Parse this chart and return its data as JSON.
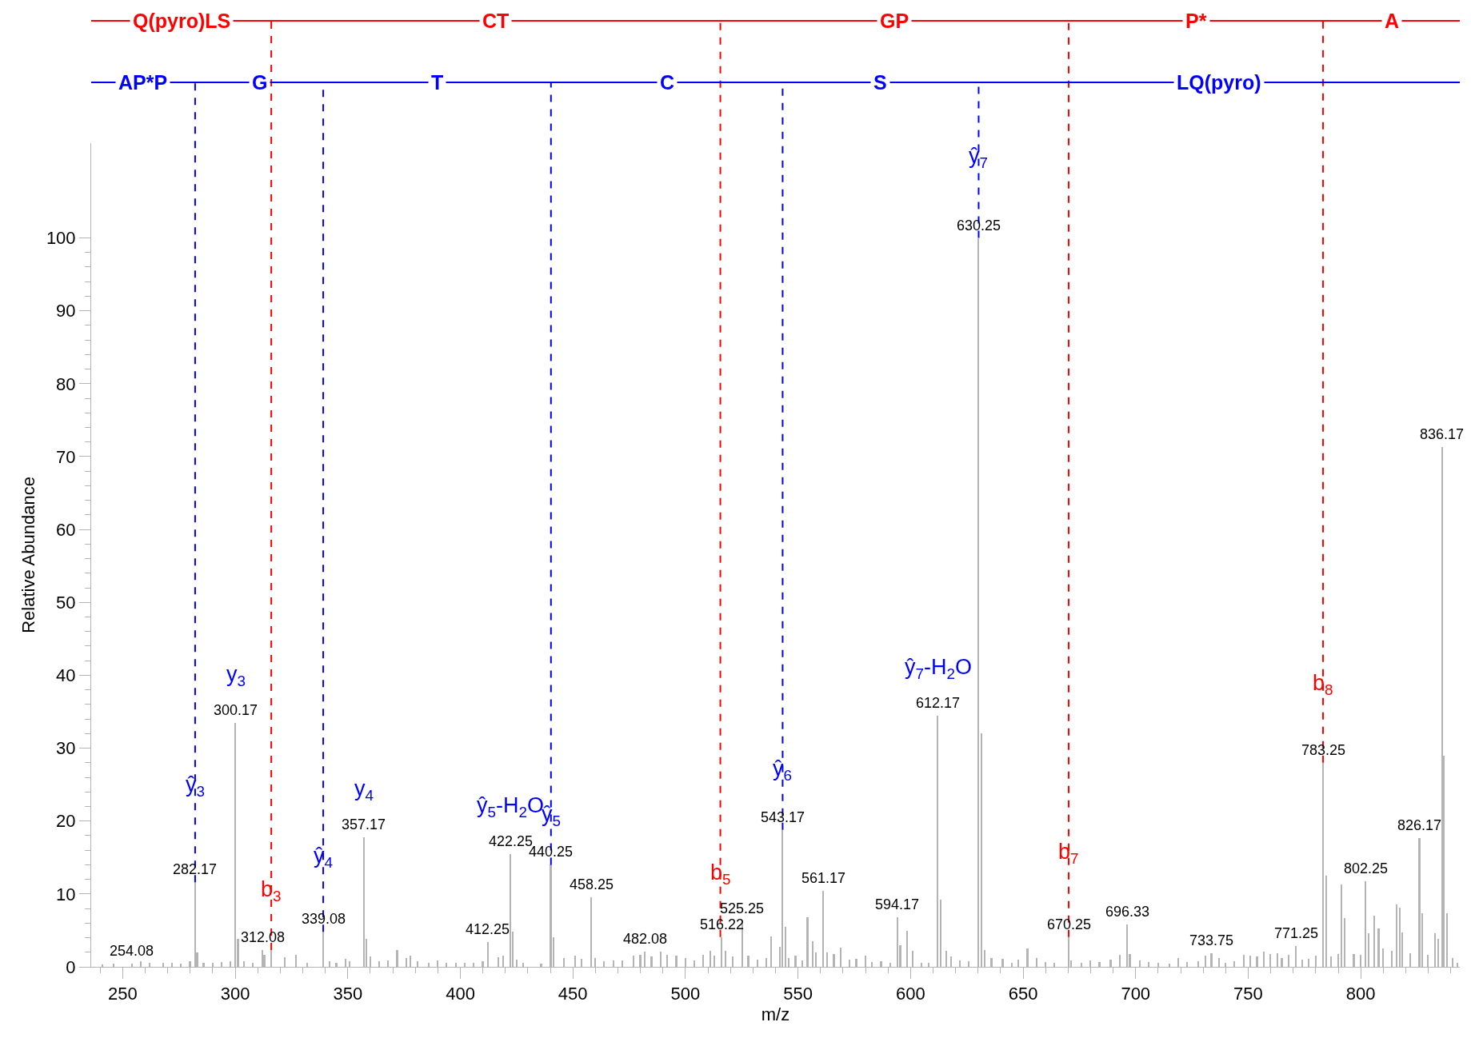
{
  "chart_data": {
    "type": "bar",
    "xlabel": "m/z",
    "ylabel": "Relative Abundance",
    "xlim": [
      236,
      844
    ],
    "ylim": [
      0,
      113
    ],
    "xticks": [
      {
        "value": 240,
        "label": null
      },
      250,
      {
        "value": 260,
        "label": null
      },
      {
        "value": 270,
        "label": null
      },
      {
        "value": 280,
        "label": null
      },
      {
        "value": 290,
        "label": null
      },
      300,
      {
        "value": 310,
        "label": null
      },
      {
        "value": 320,
        "label": null
      },
      {
        "value": 330,
        "label": null
      },
      {
        "value": 340,
        "label": null
      },
      350,
      {
        "value": 360,
        "label": null
      },
      {
        "value": 370,
        "label": null
      },
      {
        "value": 380,
        "label": null
      },
      {
        "value": 390,
        "label": null
      },
      400,
      {
        "value": 410,
        "label": null
      },
      {
        "value": 420,
        "label": null
      },
      {
        "value": 430,
        "label": null
      },
      {
        "value": 440,
        "label": null
      },
      450,
      {
        "value": 460,
        "label": null
      },
      {
        "value": 470,
        "label": null
      },
      {
        "value": 480,
        "label": null
      },
      {
        "value": 490,
        "label": null
      },
      500,
      {
        "value": 510,
        "label": null
      },
      {
        "value": 520,
        "label": null
      },
      {
        "value": 530,
        "label": null
      },
      {
        "value": 540,
        "label": null
      },
      550,
      {
        "value": 560,
        "label": null
      },
      {
        "value": 570,
        "label": null
      },
      {
        "value": 580,
        "label": null
      },
      {
        "value": 590,
        "label": null
      },
      600,
      {
        "value": 610,
        "label": null
      },
      {
        "value": 620,
        "label": null
      },
      {
        "value": 630,
        "label": null
      },
      {
        "value": 640,
        "label": null
      },
      650,
      {
        "value": 660,
        "label": null
      },
      {
        "value": 670,
        "label": null
      },
      {
        "value": 680,
        "label": null
      },
      {
        "value": 690,
        "label": null
      },
      700,
      {
        "value": 710,
        "label": null
      },
      {
        "value": 720,
        "label": null
      },
      {
        "value": 730,
        "label": null
      },
      {
        "value": 740,
        "label": null
      },
      750,
      {
        "value": 760,
        "label": null
      },
      {
        "value": 770,
        "label": null
      },
      {
        "value": 780,
        "label": null
      },
      {
        "value": 790,
        "label": null
      },
      800,
      {
        "value": 810,
        "label": null
      },
      {
        "value": 820,
        "label": null
      },
      {
        "value": 830,
        "label": null
      },
      {
        "value": 840,
        "label": null
      }
    ],
    "yticks": [
      0,
      {
        "value": 2,
        "label": null
      },
      {
        "value": 4,
        "label": null
      },
      {
        "value": 6,
        "label": null
      },
      {
        "value": 8,
        "label": null
      },
      10,
      {
        "value": 12,
        "label": null
      },
      {
        "value": 14,
        "label": null
      },
      {
        "value": 16,
        "label": null
      },
      {
        "value": 18,
        "label": null
      },
      20,
      {
        "value": 22,
        "label": null
      },
      {
        "value": 24,
        "label": null
      },
      {
        "value": 26,
        "label": null
      },
      {
        "value": 28,
        "label": null
      },
      30,
      {
        "value": 32,
        "label": null
      },
      {
        "value": 34,
        "label": null
      },
      {
        "value": 36,
        "label": null
      },
      {
        "value": 38,
        "label": null
      },
      40,
      {
        "value": 42,
        "label": null
      },
      {
        "value": 44,
        "label": null
      },
      {
        "value": 46,
        "label": null
      },
      {
        "value": 48,
        "label": null
      },
      50,
      {
        "value": 52,
        "label": null
      },
      {
        "value": 54,
        "label": null
      },
      {
        "value": 56,
        "label": null
      },
      {
        "value": 58,
        "label": null
      },
      60,
      {
        "value": 62,
        "label": null
      },
      {
        "value": 64,
        "label": null
      },
      {
        "value": 66,
        "label": null
      },
      {
        "value": 68,
        "label": null
      },
      70,
      {
        "value": 72,
        "label": null
      },
      {
        "value": 74,
        "label": null
      },
      {
        "value": 76,
        "label": null
      },
      {
        "value": 78,
        "label": null
      },
      80,
      {
        "value": 82,
        "label": null
      },
      {
        "value": 84,
        "label": null
      },
      {
        "value": 86,
        "label": null
      },
      {
        "value": 88,
        "label": null
      },
      90,
      {
        "value": 92,
        "label": null
      },
      {
        "value": 94,
        "label": null
      },
      {
        "value": 96,
        "label": null
      },
      {
        "value": 98,
        "label": null
      },
      100
    ],
    "series": [
      {
        "color": "#b4b4b4",
        "x": [
          241,
          246,
          254.08,
          258,
          262,
          268,
          272,
          276,
          280,
          282.17,
          283.2,
          286,
          290,
          294,
          298,
          300.17,
          301.3,
          304,
          308,
          312.08,
          313,
          316,
          322,
          327,
          332,
          339.08,
          342,
          345,
          349,
          351,
          357.17,
          358.2,
          360,
          364,
          368,
          372,
          376,
          378,
          381,
          386,
          390,
          394,
          398,
          402,
          406,
          410,
          412.25,
          417,
          419,
          422.25,
          423.3,
          425,
          428,
          436,
          440.25,
          441.5,
          446,
          451,
          454,
          458.25,
          460,
          464,
          468,
          472,
          477,
          480,
          482.08,
          485,
          489,
          492,
          496,
          500,
          504,
          508,
          511,
          513,
          516.22,
          518,
          521,
          525.25,
          528,
          532,
          536,
          538,
          542,
          543.17,
          544.5,
          546,
          549,
          552,
          554.3,
          556.5,
          558,
          561.17,
          563,
          566,
          569,
          573,
          576,
          580,
          583,
          587,
          591,
          594.17,
          595.5,
          598.5,
          601,
          605,
          608,
          612.17,
          613.5,
          616,
          618,
          622,
          626,
          630.25,
          631.5,
          633,
          636,
          641,
          645,
          648,
          652,
          656,
          660,
          664,
          670.25,
          671.5,
          676,
          680,
          684,
          689,
          693,
          696.33,
          697.5,
          702,
          706,
          710,
          715,
          719,
          723,
          728,
          731,
          733.75,
          737,
          740,
          744,
          748,
          751,
          754,
          757,
          760,
          763,
          765,
          768,
          771.25,
          774,
          777,
          780,
          783.25,
          784.6,
          787,
          790,
          791.5,
          793,
          797,
          800,
          802.25,
          803.5,
          806,
          808,
          810,
          814,
          816,
          817.5,
          818.5,
          822,
          826.17,
          827.5,
          830,
          833,
          834.5,
          836.17,
          837,
          838.5,
          841,
          843
        ],
        "values": [
          0.3,
          0.4,
          0.4,
          0.8,
          0.6,
          0.5,
          0.6,
          0.4,
          0.8,
          11.6,
          2,
          0.6,
          0.5,
          0.7,
          0.8,
          33.5,
          3.8,
          0.8,
          0.6,
          2.3,
          1.6,
          2.3,
          1.3,
          1.6,
          0.6,
          4.8,
          0.8,
          0.5,
          1.1,
          0.8,
          17.8,
          3.8,
          1.4,
          0.8,
          0.9,
          2.3,
          1.2,
          1.5,
          0.8,
          0.6,
          0.9,
          0.6,
          0.5,
          0.6,
          0.5,
          0.8,
          3.4,
          1.3,
          1.5,
          15.5,
          4.8,
          1,
          0.6,
          0.4,
          14,
          4.1,
          1.2,
          1.5,
          1.1,
          9.6,
          1.2,
          0.8,
          0.9,
          0.9,
          1.5,
          1.6,
          2.1,
          1.4,
          2.1,
          1.6,
          1.5,
          1.2,
          0.9,
          1.6,
          2.2,
          1.5,
          4.1,
          2.2,
          1.4,
          6.3,
          1.5,
          1,
          1.2,
          4.2,
          2.7,
          18.8,
          5.5,
          1.2,
          1.5,
          0.9,
          6.8,
          3.5,
          2,
          10.4,
          2,
          1.8,
          2.6,
          1,
          1.1,
          1.5,
          0.7,
          0.8,
          0.6,
          6.8,
          3,
          4.9,
          2.2,
          0.6,
          0.5,
          34.4,
          9.2,
          2.2,
          1.4,
          0.9,
          0.8,
          100,
          32,
          2.3,
          1.2,
          1.1,
          0.6,
          1,
          2.5,
          1.2,
          0.7,
          0.5,
          4.1,
          0.9,
          0.6,
          0.9,
          0.7,
          1,
          1.7,
          5.8,
          1.8,
          0.9,
          0.7,
          0.5,
          0.4,
          1.2,
          0.7,
          0.8,
          1.5,
          1.9,
          1.2,
          0.6,
          0.8,
          1.7,
          1.5,
          1.4,
          2.1,
          1.8,
          1.9,
          1.2,
          1.7,
          2.8,
          1,
          1.1,
          1.5,
          28,
          12.5,
          1.4,
          1.8,
          11.3,
          6.7,
          1.8,
          1.6,
          11.7,
          4.6,
          7,
          5.3,
          2.5,
          2.2,
          8.6,
          8.1,
          4.7,
          1.9,
          17.7,
          7.4,
          1.6,
          4.6,
          3.8,
          71.3,
          29,
          7.4,
          1.2,
          0.5
        ]
      }
    ],
    "annotations": [
      {
        "text": "254.08",
        "x": 254.08,
        "y": 0.4
      },
      {
        "text": "282.17",
        "x": 282.17,
        "y": 11.6
      },
      {
        "text": "300.17",
        "x": 300.17,
        "y": 33.5
      },
      {
        "text": "312.08",
        "x": 312.08,
        "y": 2.3
      },
      {
        "text": "339.08",
        "x": 339.08,
        "y": 4.8
      },
      {
        "text": "357.17",
        "x": 357.17,
        "y": 17.8
      },
      {
        "text": "412.25",
        "x": 412.25,
        "y": 3.4
      },
      {
        "text": "422.25",
        "x": 422.25,
        "y": 15.5
      },
      {
        "text": "440.25",
        "x": 440.25,
        "y": 14
      },
      {
        "text": "458.25",
        "x": 458.25,
        "y": 9.6
      },
      {
        "text": "482.08",
        "x": 482.08,
        "y": 2.1
      },
      {
        "text": "516.22",
        "x": 516.22,
        "y": 4.1
      },
      {
        "text": "525.25",
        "x": 525.25,
        "y": 6.3
      },
      {
        "text": "543.17",
        "x": 543.17,
        "y": 18.8
      },
      {
        "text": "561.17",
        "x": 561.17,
        "y": 10.4
      },
      {
        "text": "594.17",
        "x": 594.17,
        "y": 6.8
      },
      {
        "text": "612.17",
        "x": 612.17,
        "y": 34.4
      },
      {
        "text": "630.25",
        "x": 630.25,
        "y": 100
      },
      {
        "text": "670.25",
        "x": 670.25,
        "y": 4.1
      },
      {
        "text": "696.33",
        "x": 696.33,
        "y": 5.8
      },
      {
        "text": "733.75",
        "x": 733.75,
        "y": 1.9
      },
      {
        "text": "771.25",
        "x": 771.25,
        "y": 2.8
      },
      {
        "text": "783.25",
        "x": 783.25,
        "y": 28
      },
      {
        "text": "802.25",
        "x": 802.25,
        "y": 11.7
      },
      {
        "text": "826.17",
        "x": 826.17,
        "y": 17.7
      },
      {
        "text": "836.17",
        "x": 836.17,
        "y": 71.3
      },
      {
        "text": "ŷ$_{3}$",
        "x": 282.17,
        "y": 24.8
      },
      {
        "text": "y$_{3}$",
        "x": 300.17,
        "y": 33.5
      },
      {
        "text": "ŷ$_{4}$",
        "x": 339.08,
        "y": 15
      },
      {
        "text": "y$_{4}$",
        "x": 357.17,
        "y": 17.8
      },
      {
        "text": "ŷ$_{5}$-H$_{2}$O",
        "x": 422.25,
        "y": 15.5
      },
      {
        "text": "ŷ$_{5}$",
        "x": 440.25,
        "y": 20.7
      },
      {
        "text": "ŷ$_{6}$",
        "x": 543.17,
        "y": 27
      },
      {
        "text": "ŷ$_{7}$",
        "x": 630.25,
        "y": 111
      },
      {
        "text": "ŷ$_{7}$-H$_{2}$O",
        "x": 612.17,
        "y": 34.4
      },
      {
        "text": "b$_{3}$",
        "x": 316,
        "y": 10.4
      },
      {
        "text": "b$_{5}$",
        "x": 515.5,
        "y": 12.7
      },
      {
        "text": "b$_{7}$",
        "x": 670.25,
        "y": 15.6
      },
      {
        "text": "b$_{8}$",
        "x": 783.25,
        "y": 38.7
      },
      "Q(pyro)LS",
      "CT",
      "GP",
      "P*",
      "A",
      "AP*P",
      "G",
      "T",
      "C",
      "S",
      "LQ(pyro)"
    ],
    "ref_lines": [
      {
        "axis": "x",
        "value": 316,
        "color": "#ff0000",
        "line_style": "dashed"
      },
      {
        "axis": "x",
        "value": 515.5,
        "color": "#ff0000",
        "line_style": "dashed"
      },
      {
        "axis": "x",
        "value": 670.25,
        "color": "#ff0000",
        "line_style": "dashed"
      },
      {
        "axis": "x",
        "value": 783.25,
        "color": "#ff0000",
        "line_style": "dashed"
      },
      {
        "axis": "x",
        "value": 282.17,
        "color": "#0000ff",
        "line_style": "dashed"
      },
      {
        "axis": "x",
        "value": 339.08,
        "color": "#0000ff",
        "line_style": "dashed"
      },
      {
        "axis": "x",
        "value": 440.25,
        "color": "#0000ff",
        "line_style": "dashed"
      },
      {
        "axis": "x",
        "value": 543.17,
        "color": "#0000ff",
        "line_style": "dashed"
      },
      {
        "axis": "x",
        "value": 630.25,
        "color": "#0000ff",
        "line_style": "dashed"
      }
    ]
  }
}
